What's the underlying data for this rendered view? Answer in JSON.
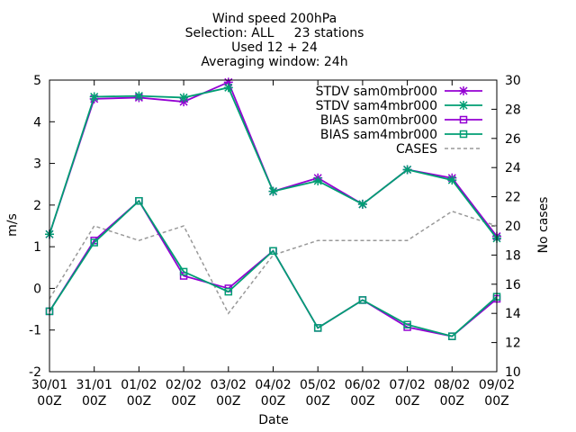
{
  "chart_data": {
    "type": "line",
    "title": [
      "Wind speed 200hPa",
      "Selection: ALL     23 stations",
      "Used 12 + 24",
      "Averaging window: 24h"
    ],
    "xlabel": "Date",
    "ylabel": "m/s",
    "y2label": "No cases",
    "categories": [
      [
        "30/01",
        "00Z"
      ],
      [
        "31/01",
        "00Z"
      ],
      [
        "01/02",
        "00Z"
      ],
      [
        "02/02",
        "00Z"
      ],
      [
        "03/02",
        "00Z"
      ],
      [
        "04/02",
        "00Z"
      ],
      [
        "05/02",
        "00Z"
      ],
      [
        "06/02",
        "00Z"
      ],
      [
        "07/02",
        "00Z"
      ],
      [
        "08/02",
        "00Z"
      ],
      [
        "09/02",
        "00Z"
      ]
    ],
    "ylim": [
      -2,
      5
    ],
    "yticks": [
      -2,
      -1,
      0,
      1,
      2,
      3,
      4,
      5
    ],
    "y2lim": [
      10,
      30
    ],
    "y2ticks": [
      10,
      12,
      14,
      16,
      18,
      20,
      22,
      24,
      26,
      28,
      30
    ],
    "grid": false,
    "legend_position": "top-right",
    "series": [
      {
        "name": "STDV sam0mbr000",
        "axis": "y",
        "color": "#9400d3",
        "marker": "star",
        "dash": "",
        "values": [
          1.3,
          4.55,
          4.58,
          4.48,
          4.95,
          2.33,
          2.65,
          2.02,
          2.85,
          2.65,
          1.25
        ]
      },
      {
        "name": "STDV sam4mbr000",
        "axis": "y",
        "color": "#009e73",
        "marker": "star",
        "dash": "",
        "values": [
          1.3,
          4.6,
          4.62,
          4.58,
          4.82,
          2.33,
          2.58,
          2.02,
          2.85,
          2.6,
          1.2
        ]
      },
      {
        "name": "BIAS sam0mbr000",
        "axis": "y",
        "color": "#9400d3",
        "marker": "square",
        "dash": "",
        "values": [
          -0.55,
          1.15,
          2.1,
          0.3,
          0.0,
          0.9,
          -0.95,
          -0.28,
          -0.93,
          -1.15,
          -0.25
        ]
      },
      {
        "name": "BIAS sam4mbr000",
        "axis": "y",
        "color": "#009e73",
        "marker": "square",
        "dash": "",
        "values": [
          -0.55,
          1.1,
          2.1,
          0.4,
          -0.08,
          0.9,
          -0.95,
          -0.28,
          -0.87,
          -1.15,
          -0.2
        ]
      },
      {
        "name": "CASES",
        "axis": "y2",
        "color": "#999999",
        "marker": "none",
        "dash": "4,3",
        "values": [
          15,
          20,
          19,
          20,
          14,
          18,
          19,
          19,
          19,
          21,
          20
        ]
      }
    ]
  }
}
